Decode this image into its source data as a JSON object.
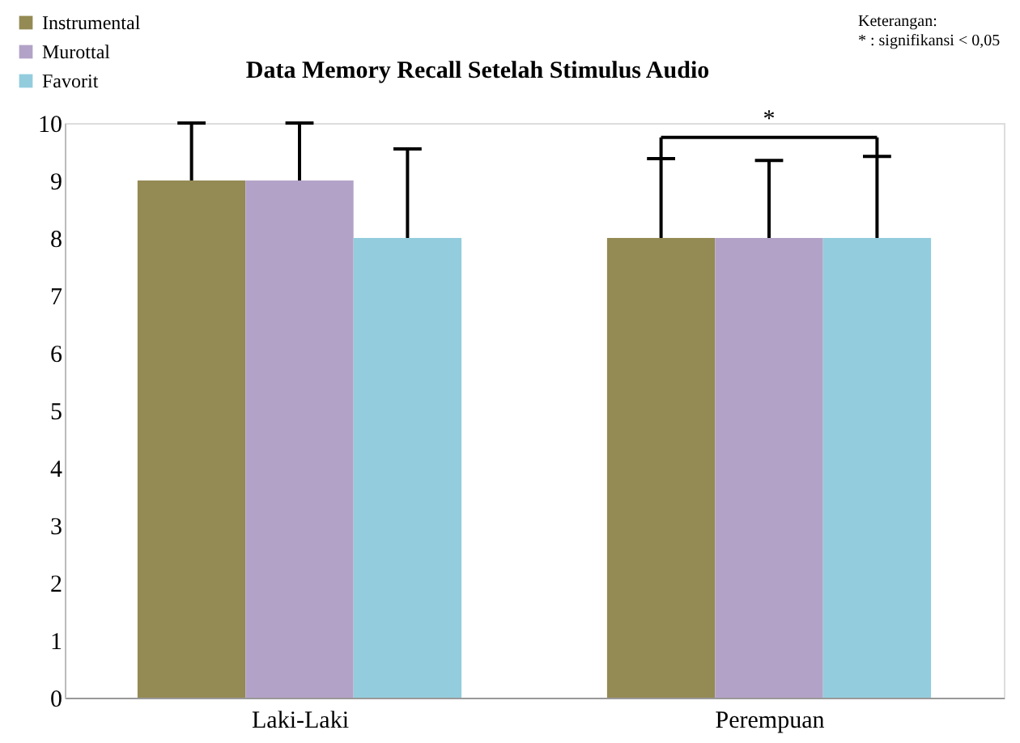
{
  "chart_data": {
    "type": "bar",
    "title": "Data Memory Recall Setelah Stimulus Audio",
    "categories": [
      "Laki-Laki",
      "Perempuan"
    ],
    "series": [
      {
        "name": "Instrumental",
        "color": "#948a54",
        "values": [
          9,
          8
        ],
        "errors": [
          [
            9,
            10
          ],
          [
            8,
            9.38
          ]
        ]
      },
      {
        "name": "Murottal",
        "color": "#b3a2c7",
        "values": [
          9,
          8
        ],
        "errors": [
          [
            9,
            10
          ],
          [
            8,
            9.35
          ]
        ]
      },
      {
        "name": "Favorit",
        "color": "#93cddd",
        "values": [
          8,
          8
        ],
        "errors": [
          [
            8,
            9.55
          ],
          [
            8,
            9.42
          ]
        ]
      }
    ],
    "ylim": [
      0,
      10
    ],
    "yticks": [
      0,
      1,
      2,
      3,
      4,
      5,
      6,
      7,
      8,
      9,
      10
    ],
    "grid": false,
    "legend": "top left",
    "annotations": [
      "Keterangan:",
      "* : signifikansi < 0,05",
      "*"
    ]
  }
}
